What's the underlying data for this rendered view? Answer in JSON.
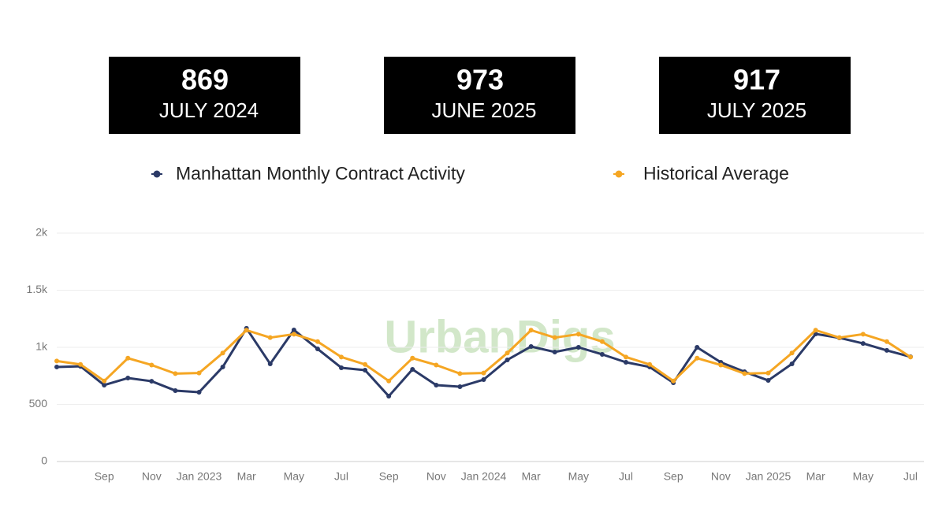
{
  "cards": [
    {
      "value": "869",
      "label": "JULY 2024"
    },
    {
      "value": "973",
      "label": "JUNE 2025"
    },
    {
      "value": "917",
      "label": "JULY 2025"
    }
  ],
  "chart_data": {
    "type": "line",
    "watermark": "UrbanDigs",
    "categories": [
      null,
      null,
      "Sep",
      null,
      "Nov",
      null,
      "Jan 2023",
      null,
      "Mar",
      null,
      "May",
      null,
      "Jul",
      null,
      "Sep",
      null,
      "Nov",
      null,
      "Jan 2024",
      null,
      "Mar",
      null,
      "May",
      null,
      "Jul",
      null,
      "Sep",
      null,
      "Nov",
      null,
      "Jan 2025",
      null,
      "Mar",
      null,
      "May",
      null,
      "Jul"
    ],
    "series": [
      {
        "name": "Manhattan Monthly Contract Activity",
        "color": "#2b3a67",
        "values": [
          828,
          834,
          669,
          731,
          703,
          621,
          607,
          828,
          1166,
          855,
          1152,
          986,
          821,
          800,
          572,
          807,
          669,
          655,
          717,
          890,
          1007,
          959,
          1000,
          938,
          869,
          828,
          690,
          1000,
          869,
          786,
          710,
          855,
          1117,
          1083,
          1034,
          973,
          917
        ]
      },
      {
        "name": "Historical Average",
        "color": "#f5a623",
        "values": [
          880,
          850,
          705,
          905,
          845,
          770,
          775,
          950,
          1150,
          1085,
          1115,
          1050,
          915,
          850,
          705,
          905,
          845,
          770,
          775,
          950,
          1150,
          1085,
          1115,
          1050,
          915,
          850,
          705,
          905,
          845,
          770,
          775,
          950,
          1150,
          1085,
          1115,
          1050,
          915
        ]
      }
    ],
    "ylim": [
      0,
      2000
    ],
    "yticks": [
      0,
      500,
      {
        "value": 1000,
        "label": "1k"
      },
      {
        "value": 1500,
        "label": "1.5k"
      },
      {
        "value": 2000,
        "label": "2k"
      }
    ],
    "grid": true
  }
}
